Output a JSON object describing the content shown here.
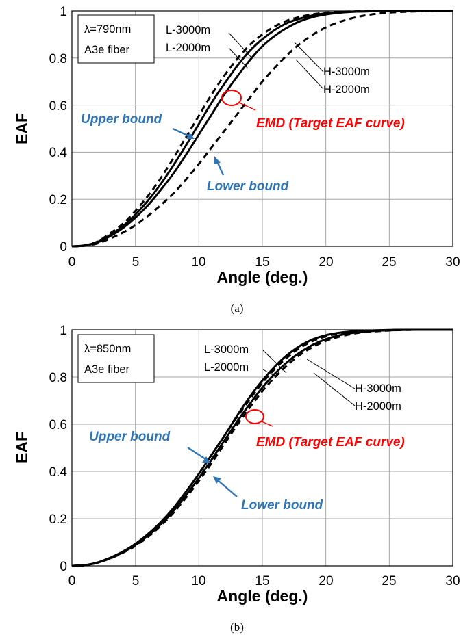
{
  "colors": {
    "curve": "#000000",
    "annotation_blue": "#2e75b6",
    "annotation_red": "#ff0000",
    "grid": "#a6a6a6"
  },
  "chart_data": [
    {
      "type": "line",
      "caption": "(a)",
      "xlabel": "Angle (deg.)",
      "ylabel": "EAF",
      "xlim": [
        0,
        30
      ],
      "ylim": [
        0,
        1
      ],
      "xticks": [
        "0",
        "5",
        "10",
        "15",
        "20",
        "25",
        "30"
      ],
      "yticks": [
        "0",
        "0.2",
        "0.4",
        "0.6",
        "0.8",
        "1"
      ],
      "grid": true,
      "info_box": [
        "λ=790nm",
        "A3e fiber"
      ],
      "series": [
        {
          "name": "Upper bound",
          "style": "dashed",
          "x": [
            0,
            1,
            2,
            3,
            4,
            5,
            6,
            7,
            8,
            9,
            10,
            11,
            12,
            13,
            14,
            15,
            16,
            17,
            18,
            19,
            20,
            21,
            22,
            23,
            24,
            25,
            26,
            27,
            28,
            29,
            30
          ],
          "y": [
            0,
            0.004,
            0.02,
            0.055,
            0.095,
            0.15,
            0.215,
            0.29,
            0.375,
            0.465,
            0.555,
            0.645,
            0.725,
            0.795,
            0.855,
            0.9,
            0.935,
            0.96,
            0.975,
            0.986,
            0.993,
            0.996,
            0.998,
            0.999,
            1,
            1,
            1,
            1,
            1,
            1,
            1
          ]
        },
        {
          "name": "L-3000m",
          "style": "solid",
          "x": [
            0,
            1,
            2,
            3,
            4,
            5,
            6,
            7,
            8,
            9,
            10,
            11,
            12,
            13,
            14,
            15,
            16,
            17,
            18,
            19,
            20,
            21,
            22,
            23,
            24,
            25,
            26,
            27,
            28,
            29,
            30
          ],
          "y": [
            0,
            0.004,
            0.018,
            0.048,
            0.085,
            0.135,
            0.195,
            0.265,
            0.345,
            0.43,
            0.52,
            0.61,
            0.69,
            0.765,
            0.83,
            0.88,
            0.92,
            0.95,
            0.968,
            0.981,
            0.99,
            0.994,
            0.997,
            0.998,
            0.999,
            1,
            1,
            1,
            1,
            1,
            1
          ]
        },
        {
          "name": "H-2000m",
          "style": "solid",
          "x": [
            0,
            1,
            2,
            3,
            4,
            5,
            6,
            7,
            8,
            9,
            10,
            11,
            12,
            13,
            14,
            15,
            16,
            17,
            18,
            19,
            20,
            21,
            22,
            23,
            24,
            25,
            26,
            27,
            28,
            29,
            30
          ],
          "y": [
            0,
            0.003,
            0.016,
            0.043,
            0.077,
            0.122,
            0.175,
            0.24,
            0.31,
            0.39,
            0.475,
            0.56,
            0.645,
            0.72,
            0.79,
            0.85,
            0.895,
            0.93,
            0.957,
            0.974,
            0.985,
            0.992,
            0.996,
            0.998,
            0.999,
            1,
            1,
            1,
            1,
            1,
            1
          ]
        },
        {
          "name": "Lower bound",
          "style": "dashed",
          "x": [
            0,
            1,
            2,
            3,
            4,
            5,
            6,
            7,
            8,
            9,
            10,
            11,
            12,
            13,
            14,
            15,
            16,
            17,
            18,
            19,
            20,
            21,
            22,
            23,
            24,
            25,
            26,
            27,
            28,
            29,
            30
          ],
          "y": [
            0,
            0.002,
            0.012,
            0.033,
            0.058,
            0.09,
            0.13,
            0.175,
            0.225,
            0.285,
            0.35,
            0.42,
            0.49,
            0.56,
            0.63,
            0.7,
            0.76,
            0.815,
            0.862,
            0.9,
            0.93,
            0.952,
            0.968,
            0.98,
            0.988,
            0.993,
            0.996,
            0.998,
            0.999,
            1,
            1
          ]
        }
      ],
      "annotations": {
        "curve_labels": [
          "L-3000m",
          "L-2000m",
          "H-3000m",
          "H-2000m"
        ],
        "upper": "Upper bound",
        "lower": "Lower bound",
        "target": "EMD (Target EAF curve)"
      }
    },
    {
      "type": "line",
      "caption": "(b)",
      "xlabel": "Angle (deg.)",
      "ylabel": "EAF",
      "xlim": [
        0,
        30
      ],
      "ylim": [
        0,
        1
      ],
      "xticks": [
        "0",
        "5",
        "10",
        "15",
        "20",
        "25",
        "30"
      ],
      "yticks": [
        "0",
        "0.2",
        "0.4",
        "0.6",
        "0.8",
        "1"
      ],
      "grid": true,
      "info_box": [
        "λ=850nm",
        "A3e fiber"
      ],
      "series": [
        {
          "name": "Upper bound",
          "style": "dashed",
          "x": [
            0,
            1,
            2,
            3,
            4,
            5,
            6,
            7,
            8,
            9,
            10,
            11,
            12,
            13,
            14,
            15,
            16,
            17,
            18,
            19,
            20,
            21,
            22,
            23,
            24,
            25,
            26,
            27,
            28,
            29,
            30
          ],
          "y": [
            0,
            0.003,
            0.014,
            0.034,
            0.06,
            0.093,
            0.135,
            0.185,
            0.245,
            0.315,
            0.39,
            0.47,
            0.55,
            0.63,
            0.705,
            0.775,
            0.835,
            0.885,
            0.925,
            0.953,
            0.972,
            0.984,
            0.991,
            0.995,
            0.997,
            0.999,
            1,
            1,
            1,
            1,
            1
          ]
        },
        {
          "name": "L-3000m",
          "style": "solid",
          "x": [
            0,
            1,
            2,
            3,
            4,
            5,
            6,
            7,
            8,
            9,
            10,
            11,
            12,
            13,
            14,
            15,
            16,
            17,
            18,
            19,
            20,
            21,
            22,
            23,
            24,
            25,
            26,
            27,
            28,
            29,
            30
          ],
          "y": [
            0,
            0.003,
            0.014,
            0.034,
            0.06,
            0.093,
            0.135,
            0.185,
            0.245,
            0.315,
            0.39,
            0.47,
            0.55,
            0.635,
            0.715,
            0.785,
            0.845,
            0.895,
            0.933,
            0.96,
            0.977,
            0.987,
            0.993,
            0.996,
            0.998,
            0.999,
            1,
            1,
            1,
            1,
            1
          ]
        },
        {
          "name": "H-2000m",
          "style": "solid",
          "x": [
            0,
            1,
            2,
            3,
            4,
            5,
            6,
            7,
            8,
            9,
            10,
            11,
            12,
            13,
            14,
            15,
            16,
            17,
            18,
            19,
            20,
            21,
            22,
            23,
            24,
            25,
            26,
            27,
            28,
            29,
            30
          ],
          "y": [
            0,
            0.003,
            0.013,
            0.032,
            0.057,
            0.088,
            0.128,
            0.176,
            0.233,
            0.3,
            0.372,
            0.45,
            0.53,
            0.61,
            0.685,
            0.755,
            0.815,
            0.865,
            0.905,
            0.937,
            0.96,
            0.976,
            0.986,
            0.992,
            0.996,
            0.998,
            0.999,
            1,
            1,
            1,
            1
          ]
        },
        {
          "name": "Lower bound",
          "style": "dashed",
          "x": [
            0,
            1,
            2,
            3,
            4,
            5,
            6,
            7,
            8,
            9,
            10,
            11,
            12,
            13,
            14,
            15,
            16,
            17,
            18,
            19,
            20,
            21,
            22,
            23,
            24,
            25,
            26,
            27,
            28,
            29,
            30
          ],
          "y": [
            0,
            0.003,
            0.013,
            0.031,
            0.055,
            0.085,
            0.123,
            0.17,
            0.225,
            0.29,
            0.36,
            0.435,
            0.515,
            0.595,
            0.67,
            0.74,
            0.8,
            0.852,
            0.895,
            0.928,
            0.953,
            0.97,
            0.982,
            0.99,
            0.994,
            0.997,
            0.999,
            1,
            1,
            1,
            1
          ]
        }
      ],
      "annotations": {
        "curve_labels": [
          "L-3000m",
          "L-2000m",
          "H-3000m",
          "H-2000m"
        ],
        "upper": "Upper bound",
        "lower": "Lower bound",
        "target": "EMD (Target EAF curve)"
      }
    }
  ]
}
